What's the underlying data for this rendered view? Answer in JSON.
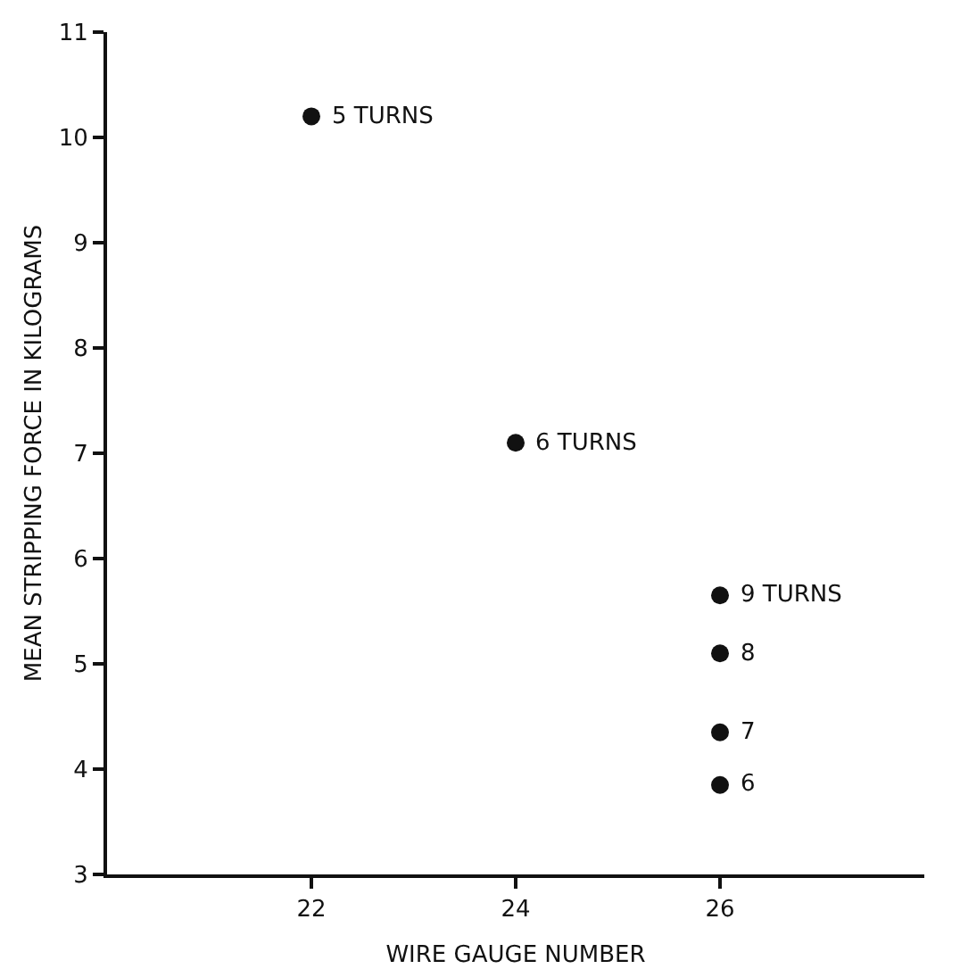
{
  "chart_data": {
    "type": "scatter",
    "xlabel": "WIRE GAUGE NUMBER",
    "ylabel": "MEAN STRIPPING FORCE IN KILOGRAMS",
    "x": [
      22,
      24,
      26,
      26,
      26,
      26
    ],
    "values": [
      10.2,
      7.1,
      5.65,
      5.1,
      4.35,
      3.85
    ],
    "color": "#111111",
    "marker": "circle",
    "grid": false,
    "xlim": [
      20,
      28
    ],
    "xticks": [
      22,
      24,
      26
    ],
    "ylim": [
      3,
      11
    ],
    "yticks": [
      3,
      4,
      5,
      6,
      7,
      8,
      9,
      10,
      11
    ],
    "annotations": [
      {
        "text": "5 TURNS",
        "x": 22,
        "y": 10.2
      },
      {
        "text": "6 TURNS",
        "x": 24,
        "y": 7.1
      },
      {
        "text": "9 TURNS",
        "x": 26,
        "y": 5.65
      },
      {
        "text": "8",
        "x": 26,
        "y": 5.1
      },
      {
        "text": "7",
        "x": 26,
        "y": 4.35
      },
      {
        "text": "6",
        "x": 26,
        "y": 3.85
      }
    ]
  }
}
